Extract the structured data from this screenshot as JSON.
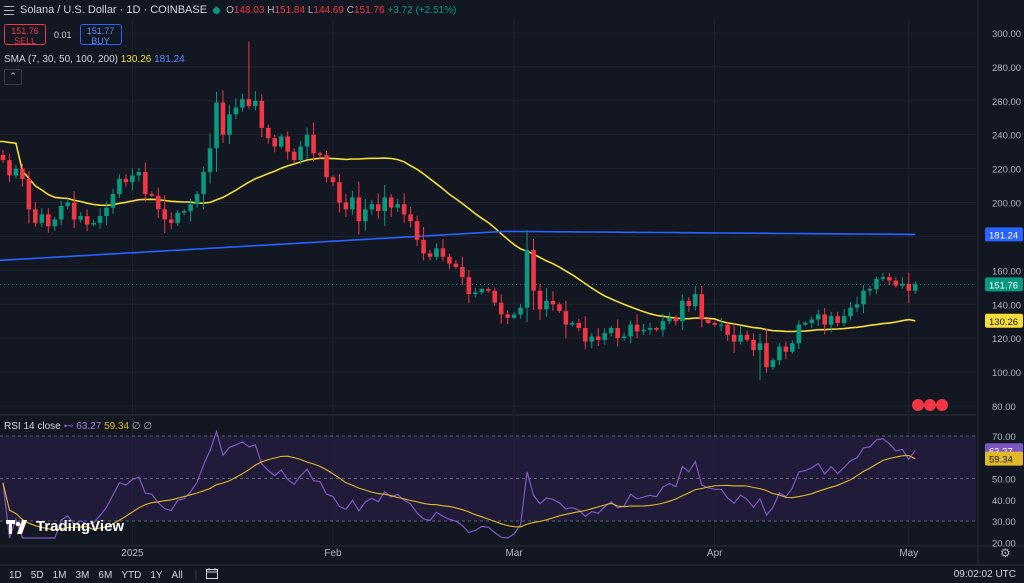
{
  "header": {
    "title": "Solana / U.S. Dollar · 1D · COINBASE",
    "ohlc_o_label": "O",
    "ohlc_o": "148.03",
    "ohlc_h_label": "H",
    "ohlc_h": "151.84",
    "ohlc_l_label": "L",
    "ohlc_l": "144.69",
    "ohlc_c_label": "C",
    "ohlc_c": "151.76",
    "change": "+3.72 (+2.51%)"
  },
  "trade": {
    "sell_price": "151.76",
    "sell_label": "SELL",
    "spread": "0.01",
    "buy_price": "151.77",
    "buy_label": "BUY"
  },
  "indicators": {
    "sma_label": "SMA (7, 30, 50, 100, 200)",
    "sma_val1": "130.26",
    "sma_val2": "181.24",
    "rsi_label": "RSI 14 close",
    "rsi_val": "63.27",
    "rsi_sma": "59.34",
    "rsi_rest": "∅ ∅"
  },
  "branding": {
    "logo_text": "TradingView"
  },
  "timeframes": [
    "1D",
    "5D",
    "1M",
    "3M",
    "6M",
    "YTD",
    "1Y",
    "All"
  ],
  "clock": "09:02:02 UTC",
  "icons": [
    "menu-icon",
    "market-status-dot",
    "collapse-icon",
    "calendar-icon",
    "settings-icon",
    "rsi-link-icon"
  ],
  "colors": {
    "up": "#089981",
    "down": "#f23645",
    "sma_yellow": "#f5de3b",
    "sma_blue": "#2962ff",
    "rsi": "#7e57c2",
    "rsi_ma": "#e0b92b",
    "bg": "#131722",
    "grid": "#1e222d"
  },
  "chart_data": [
    {
      "type": "candlestick",
      "title": "Solana / U.S. Dollar · 1D · COINBASE",
      "y_ticks": [
        80,
        100,
        120,
        140,
        160,
        180,
        200,
        220,
        240,
        260,
        280,
        300
      ],
      "y_tick_labels": [
        "80.00",
        "100.00",
        "120.00",
        "140.00",
        "160.00",
        "180.00",
        "200.00",
        "220.00",
        "240.00",
        "260.00",
        "280.00",
        "300.00"
      ],
      "ylim": [
        75,
        305
      ],
      "x_tick_labels": [
        {
          "label": "2025",
          "date": "2025-01-01"
        },
        {
          "label": "Feb",
          "date": "2025-02-01"
        },
        {
          "label": "Mar",
          "date": "2025-03-01"
        },
        {
          "label": "Apr",
          "date": "2025-04-01"
        },
        {
          "label": "May",
          "date": "2025-05-01"
        }
      ],
      "first_date": "2024-12-12",
      "closes": [
        225,
        216,
        220,
        214,
        196,
        188,
        193,
        186,
        190,
        198,
        200,
        190,
        192,
        187,
        188,
        192,
        197,
        205,
        214,
        212,
        216,
        218,
        205,
        204,
        196,
        190,
        188,
        194,
        195,
        199,
        205,
        218,
        232,
        259,
        240,
        252,
        256,
        261,
        257,
        260,
        244,
        238,
        233,
        239,
        230,
        225,
        233,
        240,
        229,
        228,
        215,
        212,
        200,
        196,
        203,
        189,
        196,
        199,
        195,
        203,
        197,
        199,
        193,
        189,
        178,
        170,
        168,
        173,
        168,
        164,
        162,
        156,
        146,
        147,
        149,
        148,
        141,
        134,
        132,
        134,
        138,
        172,
        148,
        137,
        142,
        140,
        136,
        128,
        129,
        126,
        118,
        121,
        119,
        123,
        126,
        120,
        121,
        128,
        124,
        125,
        126,
        125,
        130,
        132,
        130,
        142,
        139,
        146,
        131,
        129,
        128,
        128,
        122,
        118,
        122,
        119,
        113,
        117,
        103,
        107,
        115,
        112,
        117,
        128,
        129,
        131,
        134,
        128,
        133,
        129,
        133,
        138,
        140,
        148,
        149,
        155,
        156,
        154,
        151,
        152,
        148,
        151.76
      ],
      "highs_note": "wick extremes approx: high 295 (Jan 19), low 95.26 (Apr 7)",
      "current_price": 151.76,
      "sma_series": [
        {
          "name": "SMA 30",
          "value_label": "130.26",
          "last": 130.26
        },
        {
          "name": "SMA 200",
          "value_label": "181.24",
          "last": 181.24
        }
      ]
    },
    {
      "type": "line",
      "title": "RSI 14 close",
      "y_ticks": [
        20,
        30,
        40,
        50,
        60,
        70
      ],
      "y_tick_labels": [
        "20.00",
        "30.00",
        "40.00",
        "50.00",
        "60.00",
        "70.00"
      ],
      "bands": [
        30,
        50,
        70
      ],
      "ylim": [
        18,
        74
      ],
      "series": [
        {
          "name": "RSI",
          "last": 63.27
        },
        {
          "name": "RSI SMA",
          "last": 59.34
        }
      ]
    }
  ]
}
